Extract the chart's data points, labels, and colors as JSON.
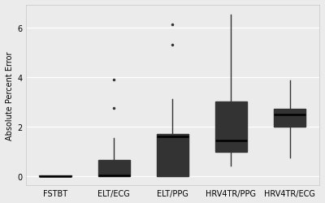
{
  "categories": [
    "FSTBT",
    "ELT/ECG",
    "ELT/PPG",
    "HRV4TR/PPG",
    "HRV4TR/ECG"
  ],
  "background_color": "#ebebeb",
  "plot_bg_color": "#ebebeb",
  "ylabel": "Absolute Percent Error",
  "ylim": [
    -0.35,
    6.9
  ],
  "yticks": [
    0,
    2,
    4,
    6
  ],
  "box_color": "white",
  "median_color": "black",
  "whisker_color": "#333333",
  "cap_color": "#333333",
  "outlier_color": "#333333",
  "grid_color": "white",
  "boxes": [
    {
      "q1": 0.0,
      "median": 0.02,
      "q3": 0.04,
      "whislo": 0.0,
      "whishi": 0.05,
      "fliers": []
    },
    {
      "q1": 0.0,
      "median": 0.05,
      "q3": 0.68,
      "whislo": 0.0,
      "whishi": 1.55,
      "fliers": [
        2.75,
        3.9
      ]
    },
    {
      "q1": 0.0,
      "median": 1.62,
      "q3": 1.72,
      "whislo": 0.0,
      "whishi": 3.1,
      "fliers": [
        5.3,
        6.1
      ]
    },
    {
      "q1": 1.0,
      "median": 1.45,
      "q3": 3.0,
      "whislo": 0.45,
      "whishi": 6.5,
      "fliers": []
    },
    {
      "q1": 2.0,
      "median": 2.5,
      "q3": 2.72,
      "whislo": 0.75,
      "whishi": 3.85,
      "fliers": []
    }
  ],
  "box_width": 0.55,
  "linewidth": 1.0,
  "median_linewidth": 1.8,
  "outlier_size": 3,
  "spine_color": "#cccccc"
}
